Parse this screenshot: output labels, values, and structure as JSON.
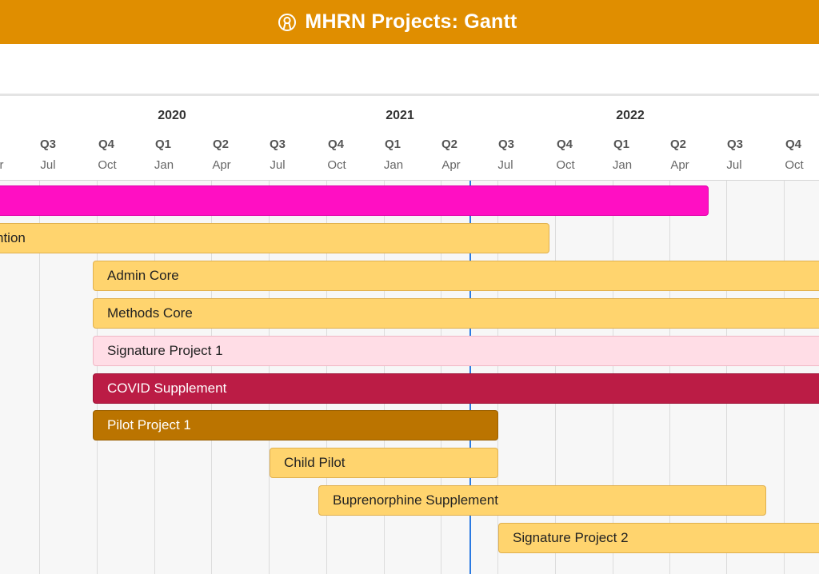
{
  "header": {
    "title": "MHRN Projects: Gantt",
    "icon": "user-circle-icon",
    "background": "#e08e00"
  },
  "timeline": {
    "years": [
      "2020",
      "2021",
      "2022"
    ],
    "quarters": [
      "Q3",
      "Q4",
      "Q1",
      "Q2",
      "Q3",
      "Q4",
      "Q1",
      "Q2",
      "Q3",
      "Q4",
      "Q1",
      "Q2",
      "Q3",
      "Q4"
    ],
    "months": [
      "r",
      "Jul",
      "Oct",
      "Jan",
      "Apr",
      "Jul",
      "Oct",
      "Jan",
      "Apr",
      "Jul",
      "Oct",
      "Jan",
      "Apr",
      "Jul",
      "Oct"
    ]
  },
  "tasks": [
    {
      "label": "",
      "color": "#ff0fc3",
      "text_color": "#ffffff",
      "border": "#e000aa"
    },
    {
      "label": "ntion",
      "color": "#ffd46e",
      "text_color": "#222222",
      "border": "#e0b04e"
    },
    {
      "label": "Admin Core",
      "color": "#ffd46e",
      "text_color": "#222222",
      "border": "#e0b04e"
    },
    {
      "label": "Methods Core",
      "color": "#ffd46e",
      "text_color": "#222222",
      "border": "#e0b04e"
    },
    {
      "label": "Signature Project 1",
      "color": "#ffdde6",
      "text_color": "#222222",
      "border": "#f0b7c5"
    },
    {
      "label": "COVID Supplement",
      "color": "#bb1c45",
      "text_color": "#ffffff",
      "border": "#9e1438"
    },
    {
      "label": "Pilot Project 1",
      "color": "#bb7400",
      "text_color": "#ffffff",
      "border": "#9a5f00"
    },
    {
      "label": "Child Pilot",
      "color": "#ffd46e",
      "text_color": "#222222",
      "border": "#e0b04e"
    },
    {
      "label": "Buprenorphine Supplement",
      "color": "#ffd46e",
      "text_color": "#222222",
      "border": "#e0b04e"
    },
    {
      "label": "Signature Project 2",
      "color": "#ffd46e",
      "text_color": "#222222",
      "border": "#e0b04e"
    }
  ]
}
